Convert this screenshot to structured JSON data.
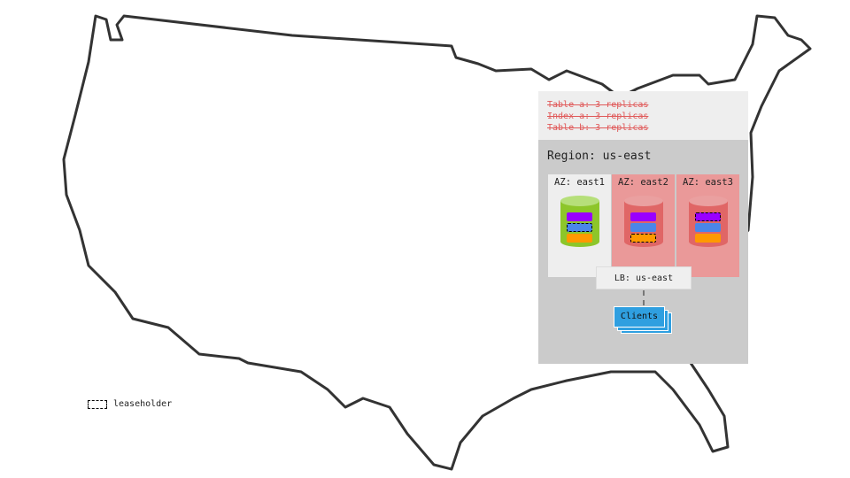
{
  "tables": [
    "Table a: 3 replicas",
    "Index a: 3 replicas",
    "Table b: 3 replicas"
  ],
  "region": "Region: us-east",
  "azs": [
    {
      "label": "AZ: east1",
      "status": "healthy",
      "leaseholder": "blue"
    },
    {
      "label": "AZ: east2",
      "status": "failed",
      "leaseholder": "orange"
    },
    {
      "label": "AZ: east3",
      "status": "failed",
      "leaseholder": "purple"
    }
  ],
  "lb": "LB: us-east",
  "clients": "Clients",
  "legend": {
    "label": "leaseholder"
  },
  "colors": {
    "healthy_bg": "#eeeeee",
    "failed_bg": "#ea9999",
    "green": "#8dc62a",
    "red": "#e06666",
    "purple": "#9900ff",
    "blue": "#4a86e8",
    "orange": "#ff9900",
    "clients": "#2f9fe0",
    "strike": "#e05a5a"
  }
}
